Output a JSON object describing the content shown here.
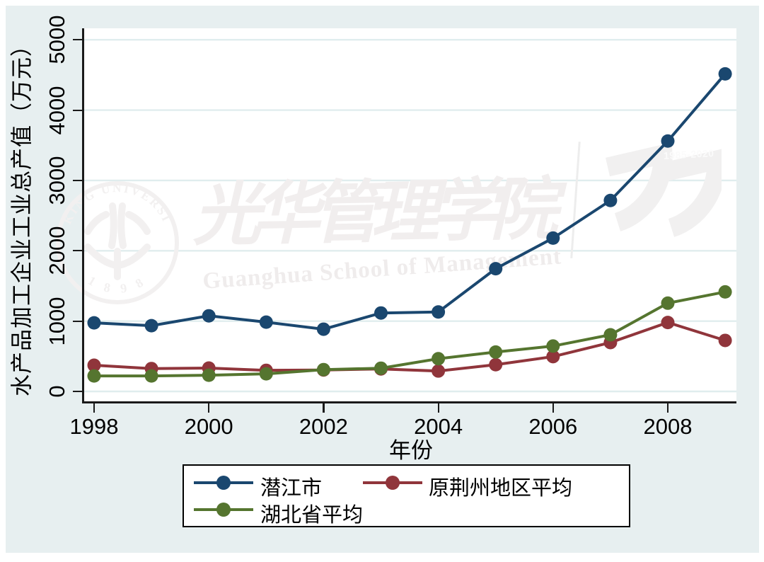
{
  "chart_data": {
    "type": "line",
    "title": "",
    "xlabel": "年份",
    "ylabel": "水产品加工企业工业总产值（万元）",
    "x": [
      1998,
      1999,
      2000,
      2001,
      2002,
      2003,
      2004,
      2005,
      2006,
      2007,
      2008,
      2009
    ],
    "x_ticks": [
      1998,
      2000,
      2002,
      2004,
      2006,
      2008
    ],
    "y_ticks": [
      0,
      1000,
      2000,
      3000,
      4000,
      5000
    ],
    "xlim": [
      1997.8,
      2009.2
    ],
    "ylim": [
      0,
      5000
    ],
    "grid": true,
    "legend_position": "bottom",
    "series": [
      {
        "name": "潜江市",
        "color": "#1a476f",
        "values": [
          975,
          935,
          1075,
          985,
          885,
          1115,
          1130,
          1745,
          2180,
          2715,
          3560,
          4515
        ]
      },
      {
        "name": "原荆州地区平均",
        "color": "#90353b",
        "values": [
          372,
          325,
          332,
          300,
          305,
          320,
          290,
          380,
          495,
          695,
          980,
          725
        ]
      },
      {
        "name": "湖北省平均",
        "color": "#55752f",
        "values": [
          220,
          220,
          230,
          250,
          310,
          330,
          465,
          560,
          645,
          805,
          1255,
          1415
        ]
      }
    ]
  },
  "watermark": {
    "seal_top_text": "PEKING UNIVERSITY",
    "seal_bottom_text": "1 8 9 8",
    "calligraphy": "光华管理学院",
    "english": "Guanghua School of Management",
    "anniversary_years": "1985-2020"
  },
  "style_colors": {
    "background": "#e7eff0",
    "plot_background": "#ffffff",
    "gridline": "#e0edee",
    "axis": "#1a1a1a",
    "watermark_gray": "#f1efef"
  }
}
